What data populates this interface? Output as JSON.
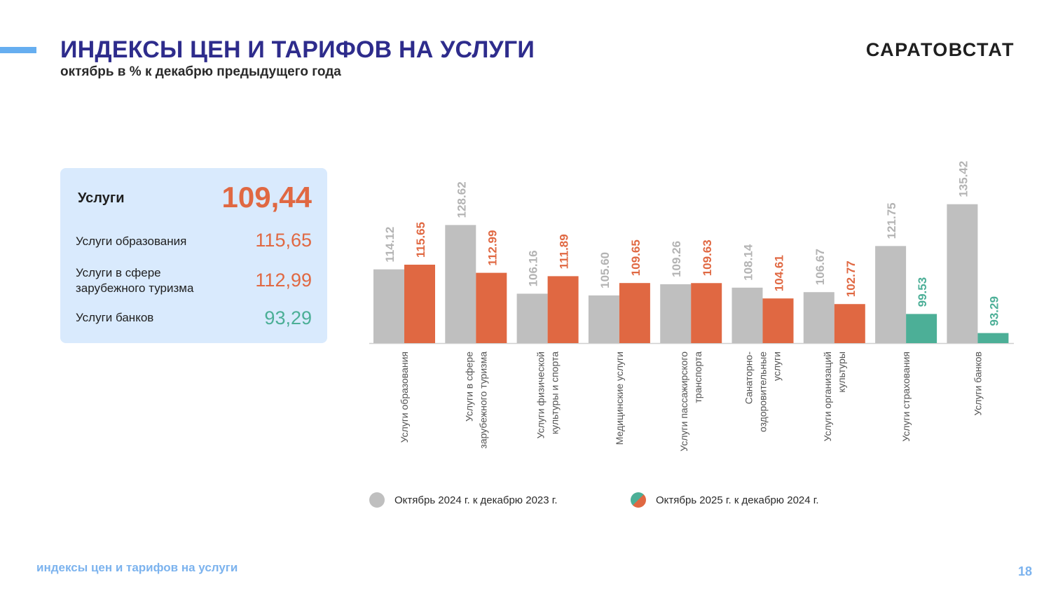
{
  "header": {
    "title": "ИНДЕКСЫ ЦЕН И ТАРИФОВ НА УСЛУГИ",
    "subtitle": "октябрь в % к декабрю предыдущего года",
    "brand": "САРАТОВСТАТ"
  },
  "summary": {
    "main": {
      "label": "Услуги",
      "value": "109,44"
    },
    "items": [
      {
        "label": "Услуги образования",
        "value": "115,65"
      },
      {
        "label": "Услуги в сфере зарубежного туризма",
        "value": "112,99"
      },
      {
        "label": "Услуги банков",
        "value": "93,29"
      }
    ]
  },
  "colors": {
    "gray": "#bfbfbf",
    "orange": "#e06842",
    "green": "#4caf97",
    "gray_label": "#b3b3b3"
  },
  "chart_data": {
    "type": "bar",
    "title": "",
    "xlabel": "",
    "ylabel": "",
    "ylim": [
      90,
      140
    ],
    "categories": [
      [
        "Услуги образования"
      ],
      [
        "Услуги в сфере",
        "зарубежного туризма"
      ],
      [
        "Услуги физической",
        "культуры и спорта"
      ],
      [
        "Медицинские услуги"
      ],
      [
        "Услуги пассажирского",
        "транспорта"
      ],
      [
        "Санаторно-",
        "оздоровительные",
        "услуги"
      ],
      [
        "Услуги организаций",
        "культуры"
      ],
      [
        "Услуги страхования"
      ],
      [
        "Услуги банков"
      ]
    ],
    "series": [
      {
        "name": "Октябрь 2024 г. к декабрю 2023 г.",
        "values": [
          114.12,
          128.62,
          106.16,
          105.6,
          109.26,
          108.14,
          106.67,
          121.75,
          135.42
        ]
      },
      {
        "name": "Октябрь 2025 г. к декабрю 2024 г.",
        "values": [
          115.65,
          112.99,
          111.89,
          109.65,
          109.63,
          104.61,
          102.77,
          99.53,
          93.29
        ]
      }
    ],
    "value_labels": [
      [
        "114.12",
        "128.62",
        "106.16",
        "105.60",
        "109.26",
        "108.14",
        "106.67",
        "121.75",
        "135.42"
      ],
      [
        "115.65",
        "112.99",
        "111.89",
        "109.65",
        "109.63",
        "104.61",
        "102.77",
        "99.53",
        "93.29"
      ]
    ],
    "series2_colors": [
      "orange",
      "orange",
      "orange",
      "orange",
      "orange",
      "orange",
      "orange",
      "green",
      "green"
    ],
    "legend_position": "bottom"
  },
  "footer": {
    "text": "индексы цен и тарифов на услуги",
    "page": "18"
  }
}
